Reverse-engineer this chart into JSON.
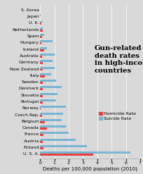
{
  "countries": [
    "U. S. A.",
    "Finland",
    "Austria",
    "France",
    "Canada",
    "Belgium",
    "Czech Rep.",
    "Norway",
    "Portugal",
    "Slovakia",
    "Denmark",
    "Sweden",
    "Italy",
    "New Zealand",
    "Germany",
    "Australia",
    "Iceland",
    "Hungary",
    "Spain",
    "Netherlands",
    "U. K.",
    "Japan",
    "S. Korea"
  ],
  "homicide": [
    3.7,
    0.26,
    0.18,
    0.22,
    0.5,
    0.33,
    0.12,
    0.04,
    0.18,
    0.2,
    0.2,
    0.19,
    0.36,
    0.18,
    0.19,
    0.16,
    0.3,
    0.1,
    0.15,
    0.2,
    0.07,
    0.01,
    0.0
  ],
  "suicide": [
    6.3,
    3.3,
    2.5,
    2.0,
    1.8,
    1.5,
    1.6,
    1.8,
    1.1,
    1.2,
    1.5,
    1.1,
    0.8,
    1.0,
    0.9,
    1.0,
    0.5,
    0.9,
    0.3,
    0.2,
    0.18,
    0.03,
    0.0
  ],
  "homicide_color": "#e8413c",
  "suicide_color": "#78b4d4",
  "title": "Gun-related\ndeath rates\nin high-income\ncountries",
  "xlabel": "Deaths per 100,000 population (2010)",
  "xlim": [
    0,
    7
  ],
  "xticks": [
    0,
    1,
    2,
    3,
    4,
    5,
    6,
    7
  ],
  "bg_color": "#d9d9d9",
  "title_fontsize": 7.2,
  "label_fontsize": 5.0,
  "tick_fontsize": 4.5,
  "legend_fontsize": 4.5,
  "bar_height": 0.32
}
